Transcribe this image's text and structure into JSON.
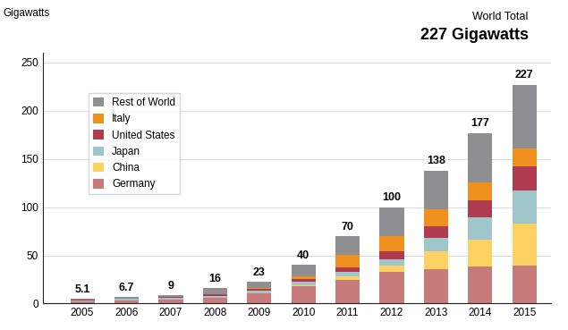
{
  "chart_data": {
    "type": "bar",
    "stacked": true,
    "title": "227 Gigawatts",
    "subtitle": "World Total",
    "y_label": "Gigawatts",
    "categories": [
      "2005",
      "2006",
      "2007",
      "2008",
      "2009",
      "2010",
      "2011",
      "2012",
      "2013",
      "2014",
      "2015"
    ],
    "series": [
      {
        "name": "Germany",
        "color": "#c77b7b",
        "values": [
          2.0,
          2.9,
          4.2,
          6.0,
          10.5,
          18,
          25,
          33,
          36,
          38,
          39.5
        ]
      },
      {
        "name": "China",
        "color": "#fdd262",
        "values": [
          0.1,
          0.1,
          0.1,
          0.1,
          0.4,
          1,
          3.3,
          6.7,
          18.3,
          28,
          43.5
        ]
      },
      {
        "name": "Japan",
        "color": "#9fc7cb",
        "values": [
          1.4,
          1.7,
          1.9,
          2.1,
          2.6,
          3.6,
          4.9,
          6.6,
          13.6,
          23,
          34
        ]
      },
      {
        "name": "United States",
        "color": "#b03a4f",
        "values": [
          0.5,
          0.6,
          0.8,
          1.2,
          1.6,
          2.5,
          4.4,
          7.7,
          12,
          18,
          25
        ]
      },
      {
        "name": "Italy",
        "color": "#f0901f",
        "values": [
          0.05,
          0.1,
          0.1,
          0.5,
          1.2,
          3.5,
          12.8,
          16.4,
          18,
          19,
          19
        ]
      },
      {
        "name": "Rest of World",
        "color": "#8f8f91",
        "values": [
          1.05,
          1.3,
          1.9,
          6.1,
          6.7,
          11.4,
          19.6,
          29.6,
          40.1,
          51,
          66
        ]
      }
    ],
    "totals": [
      5.1,
      6.7,
      9,
      16,
      23,
      40,
      70,
      100,
      138,
      177,
      227
    ],
    "ylim": [
      0,
      260
    ],
    "yticks": [
      0,
      50,
      100,
      150,
      200,
      250
    ],
    "grid": true,
    "legend": "upper left"
  }
}
